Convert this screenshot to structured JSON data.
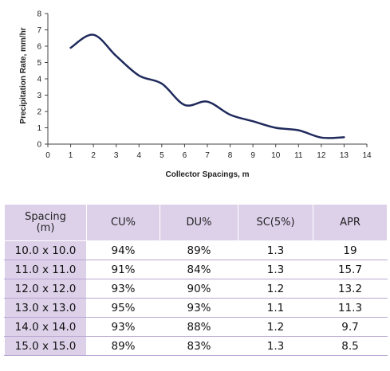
{
  "chart_data": {
    "type": "line",
    "title": "",
    "xlabel": "Collector Spacings, m",
    "ylabel": "Precipitation Rate, mm/hr",
    "xlim": [
      0,
      14
    ],
    "ylim": [
      0,
      8
    ],
    "xticks": [
      0,
      1,
      2,
      3,
      4,
      5,
      6,
      7,
      8,
      9,
      10,
      11,
      12,
      13,
      14
    ],
    "yticks": [
      0,
      1,
      2,
      3,
      4,
      5,
      6,
      7,
      8
    ],
    "grid": false,
    "legend": "none",
    "series": [
      {
        "x": [
          1,
          2,
          3,
          4,
          5,
          6,
          7,
          8,
          9,
          10,
          11,
          12,
          13
        ],
        "values": [
          5.9,
          6.7,
          5.4,
          4.2,
          3.7,
          2.4,
          2.6,
          1.8,
          1.4,
          1.0,
          0.85,
          0.4,
          0.42
        ],
        "color": "#1f2a5c"
      }
    ]
  },
  "table": {
    "headers": [
      [
        "Spacing",
        "(m)"
      ],
      [
        "CU%"
      ],
      [
        "DU%"
      ],
      [
        "SC(5%)"
      ],
      [
        "APR"
      ]
    ],
    "rows": [
      [
        "10.0 x 10.0",
        "94%",
        "89%",
        "1.3",
        "19"
      ],
      [
        "11.0 x 11.0",
        "91%",
        "84%",
        "1.3",
        "15.7"
      ],
      [
        "12.0 x 12.0",
        "93%",
        "90%",
        "1.2",
        "13.2"
      ],
      [
        "13.0 x 13.0",
        "95%",
        "93%",
        "1.1",
        "11.3"
      ],
      [
        "14.0 x 14.0",
        "93%",
        "88%",
        "1.2",
        "9.7"
      ],
      [
        "15.0 x 15.0",
        "89%",
        "83%",
        "1.3",
        "8.5"
      ]
    ],
    "header_color": "#ddd1ea",
    "rule_color": "#b9a6d2"
  }
}
